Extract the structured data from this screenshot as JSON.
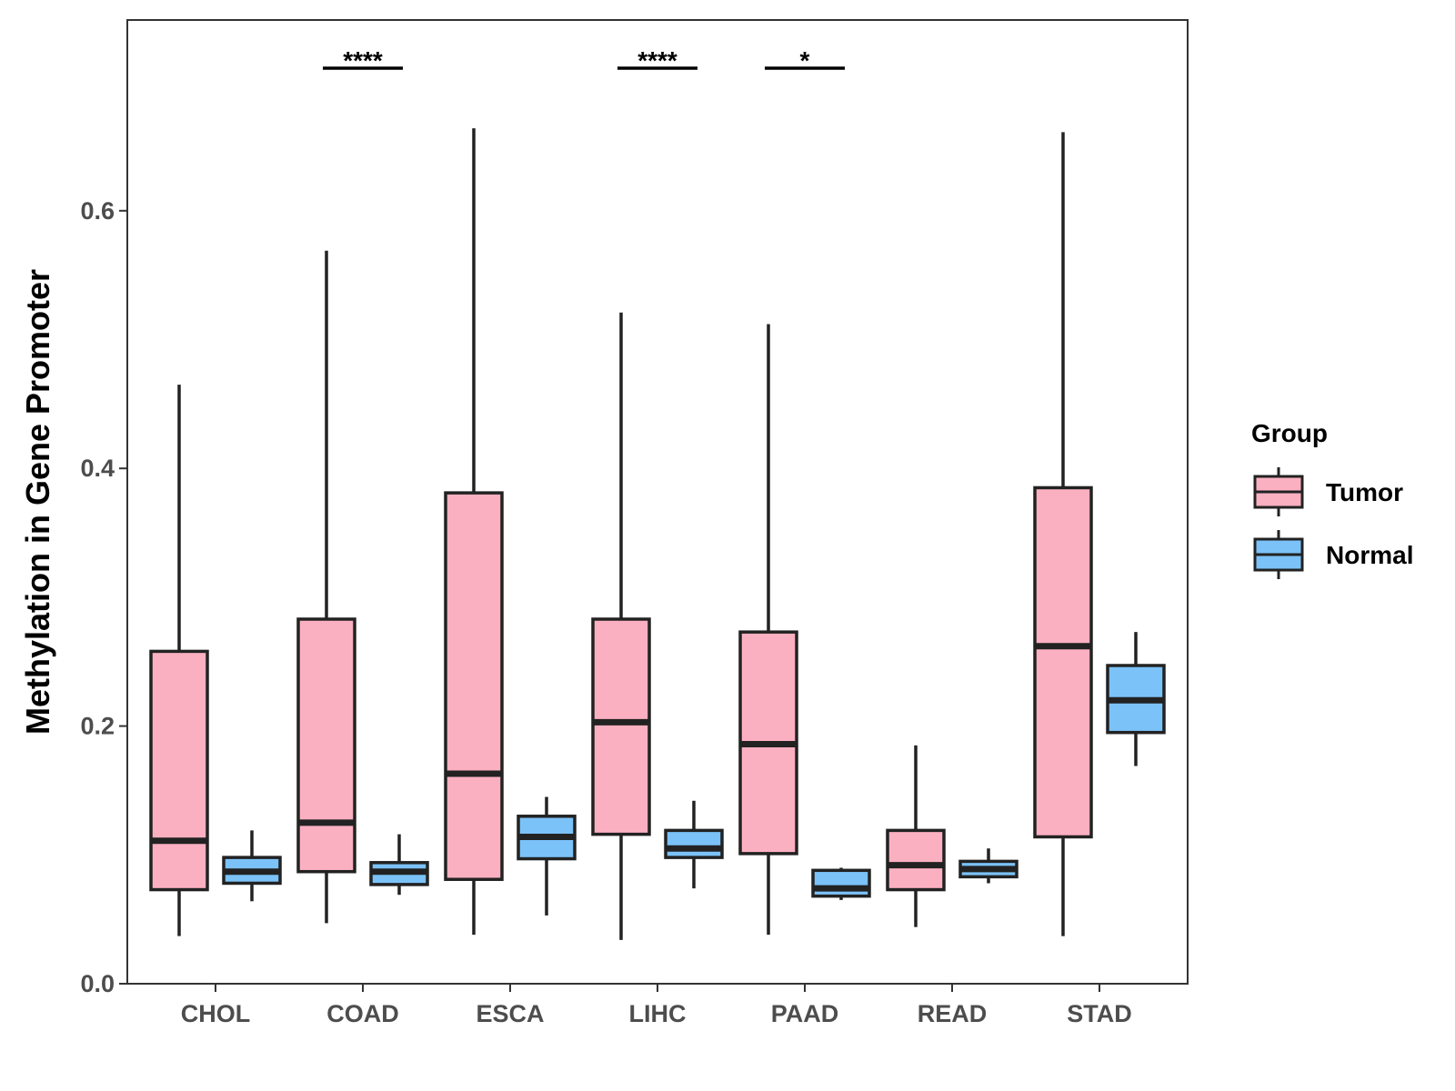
{
  "chart_data": {
    "type": "boxplot",
    "title": "",
    "xlabel": "",
    "ylabel": "Methylation in Gene Promoter",
    "ylim": [
      0,
      0.75
    ],
    "yticks": [
      0.0,
      0.2,
      0.4,
      0.6
    ],
    "ytick_labels": [
      "0.0",
      "0.2",
      "0.4",
      "0.6"
    ],
    "categories": [
      "CHOL",
      "COAD",
      "ESCA",
      "LIHC",
      "PAAD",
      "READ",
      "STAD"
    ],
    "legend": {
      "title": "Group",
      "position": "right",
      "entries": [
        {
          "name": "Tumor",
          "color": "#FBB0C1"
        },
        {
          "name": "Normal",
          "color": "#7BC2F8"
        }
      ]
    },
    "series": [
      {
        "name": "Tumor",
        "color": "#FBB0C1",
        "boxes": [
          {
            "category": "CHOL",
            "min": 0.037,
            "q1": 0.073,
            "median": 0.111,
            "q3": 0.258,
            "max": 0.465
          },
          {
            "category": "COAD",
            "min": 0.047,
            "q1": 0.087,
            "median": 0.125,
            "q3": 0.283,
            "max": 0.569
          },
          {
            "category": "ESCA",
            "min": 0.038,
            "q1": 0.081,
            "median": 0.163,
            "q3": 0.381,
            "max": 0.664
          },
          {
            "category": "LIHC",
            "min": 0.034,
            "q1": 0.116,
            "median": 0.203,
            "q3": 0.283,
            "max": 0.521
          },
          {
            "category": "PAAD",
            "min": 0.038,
            "q1": 0.101,
            "median": 0.186,
            "q3": 0.273,
            "max": 0.512
          },
          {
            "category": "READ",
            "min": 0.044,
            "q1": 0.073,
            "median": 0.092,
            "q3": 0.119,
            "max": 0.185
          },
          {
            "category": "STAD",
            "min": 0.037,
            "q1": 0.114,
            "median": 0.262,
            "q3": 0.385,
            "max": 0.661
          }
        ]
      },
      {
        "name": "Normal",
        "color": "#7BC2F8",
        "boxes": [
          {
            "category": "CHOL",
            "min": 0.064,
            "q1": 0.078,
            "median": 0.087,
            "q3": 0.098,
            "max": 0.119
          },
          {
            "category": "COAD",
            "min": 0.069,
            "q1": 0.077,
            "median": 0.087,
            "q3": 0.094,
            "max": 0.116
          },
          {
            "category": "ESCA",
            "min": 0.053,
            "q1": 0.097,
            "median": 0.114,
            "q3": 0.13,
            "max": 0.145
          },
          {
            "category": "LIHC",
            "min": 0.074,
            "q1": 0.098,
            "median": 0.105,
            "q3": 0.119,
            "max": 0.142
          },
          {
            "category": "PAAD",
            "min": 0.065,
            "q1": 0.068,
            "median": 0.074,
            "q3": 0.088,
            "max": 0.09
          },
          {
            "category": "READ",
            "min": 0.078,
            "q1": 0.083,
            "median": 0.089,
            "q3": 0.095,
            "max": 0.105
          },
          {
            "category": "STAD",
            "min": 0.169,
            "q1": 0.195,
            "median": 0.22,
            "q3": 0.247,
            "max": 0.273
          }
        ]
      }
    ],
    "significance": [
      {
        "category": "COAD",
        "label": "****"
      },
      {
        "category": "LIHC",
        "label": "****"
      },
      {
        "category": "PAAD",
        "label": "*"
      }
    ]
  }
}
